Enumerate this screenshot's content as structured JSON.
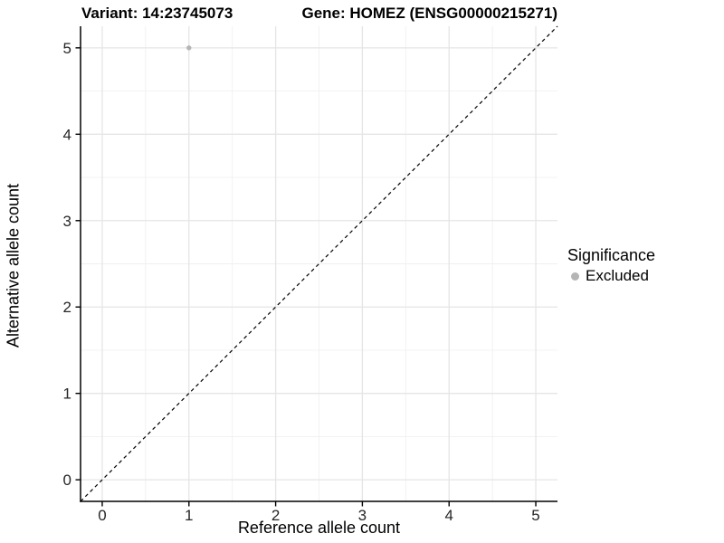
{
  "titles": {
    "variant": "Variant: 14:23745073",
    "gene": "Gene: HOMEZ (ENSG00000215271)"
  },
  "legend": {
    "title": "Significance",
    "items": [
      {
        "label": "Excluded",
        "color": "#b5b5b5"
      }
    ]
  },
  "chart_data": {
    "type": "scatter",
    "title_left": "Variant: 14:23745073",
    "title_right": "Gene: HOMEZ (ENSG00000215271)",
    "xlabel": "Reference allele count",
    "ylabel": "Alternative allele count",
    "xlim": [
      -0.25,
      5.25
    ],
    "ylim": [
      -0.25,
      5.25
    ],
    "x_ticks": [
      0,
      1,
      2,
      3,
      4,
      5
    ],
    "y_ticks": [
      0,
      1,
      2,
      3,
      4,
      5
    ],
    "x_minor_ticks": [
      0.5,
      1.5,
      2.5,
      3.5,
      4.5
    ],
    "y_minor_ticks": [
      0.5,
      1.5,
      2.5,
      3.5,
      4.5
    ],
    "grid": true,
    "legend_position": "right",
    "series": [
      {
        "name": "Excluded",
        "color": "#b5b5b5",
        "points": [
          {
            "x": 1,
            "y": 5
          }
        ]
      }
    ],
    "reference_line": {
      "slope": 1,
      "intercept": 0,
      "style": "dashed",
      "color": "#000000"
    }
  },
  "colors": {
    "background": "#ffffff",
    "grid_major": "#e5e5e5",
    "grid_minor": "#f0f0f0",
    "axis_line": "#000000",
    "tick_label": "#262626",
    "point": "#b5b5b5"
  }
}
